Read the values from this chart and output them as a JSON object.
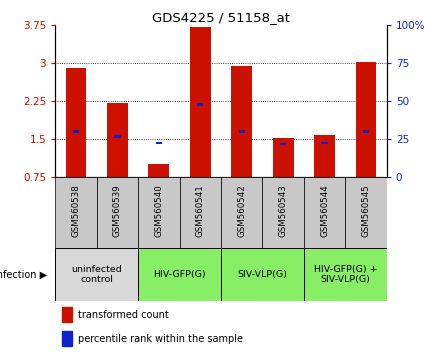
{
  "title": "GDS4225 / 51158_at",
  "samples": [
    "GSM560538",
    "GSM560539",
    "GSM560540",
    "GSM560541",
    "GSM560542",
    "GSM560543",
    "GSM560544",
    "GSM560545"
  ],
  "bar_values": [
    2.9,
    2.2,
    1.0,
    3.7,
    2.93,
    1.52,
    1.58,
    3.02
  ],
  "blue_values": [
    1.65,
    1.55,
    1.42,
    2.18,
    1.65,
    1.4,
    1.42,
    1.65
  ],
  "ylim_left": [
    0.75,
    3.75
  ],
  "ylim_right": [
    0,
    100
  ],
  "yticks_left": [
    0.75,
    1.5,
    2.25,
    3.0,
    3.75
  ],
  "ytick_labels_left": [
    "0.75",
    "1.5",
    "2.25",
    "3",
    "3.75"
  ],
  "ytick_labels_right": [
    "0",
    "25",
    "50",
    "75",
    "100%"
  ],
  "bar_color": "#cc1100",
  "blue_color": "#1122cc",
  "legend_label_red": "transformed count",
  "legend_label_blue": "percentile rank within the sample",
  "infection_label": "infection",
  "bar_width": 0.5,
  "xtick_bg": "#c8c8c8",
  "group_gray": "#d8d8d8",
  "group_green": "#88ee66",
  "group_spans": [
    {
      "label": "uninfected\ncontrol",
      "cols": [
        0,
        1
      ],
      "color": "#d8d8d8"
    },
    {
      "label": "HIV-GFP(G)",
      "cols": [
        2,
        3
      ],
      "color": "#88ee66"
    },
    {
      "label": "SIV-VLP(G)",
      "cols": [
        4,
        5
      ],
      "color": "#88ee66"
    },
    {
      "label": "HIV-GFP(G) +\nSIV-VLP(G)",
      "cols": [
        6,
        7
      ],
      "color": "#88ee66"
    }
  ]
}
